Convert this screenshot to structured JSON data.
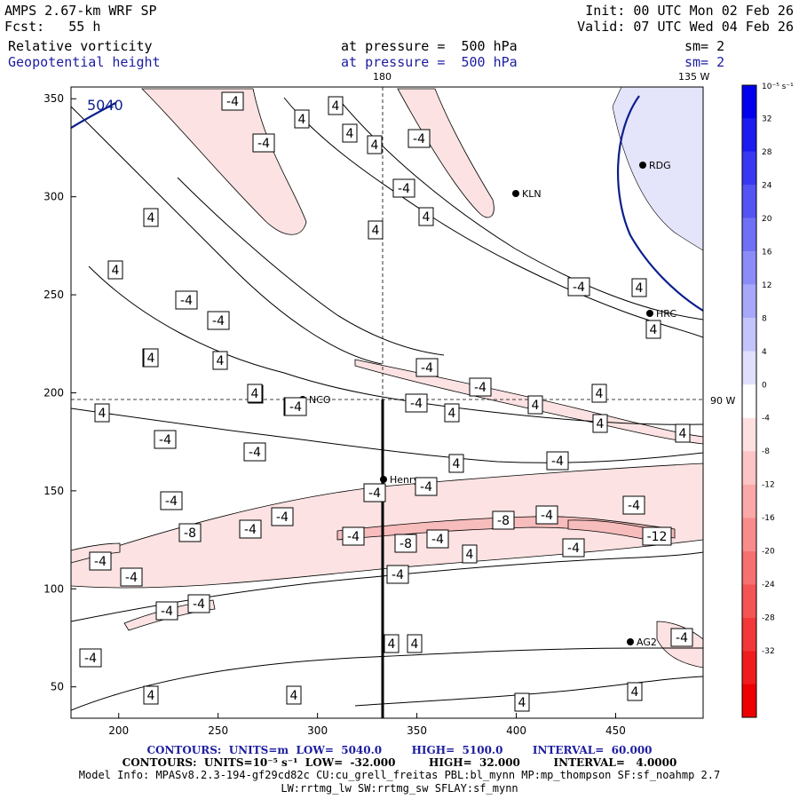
{
  "header": {
    "model": "AMPS 2.67-km WRF SP",
    "forecast": "Fcst:   55 h",
    "init": "Init: 00 UTC Mon 02 Feb 26",
    "valid": "Valid: 07 UTC Wed 04 Feb 26",
    "field1": "Relative vorticity",
    "field2": "Geopotential height",
    "pressure1": "at pressure =  500 hPa",
    "pressure2": "at pressure =  500 hPa",
    "sm1": "sm= 2",
    "sm2": "sm= 2"
  },
  "map_labels": {
    "lon_top": "180",
    "lon_topright": "135 W",
    "lat_right": "90 W",
    "height_contour": "5040",
    "stations": [
      {
        "name": "KLN"
      },
      {
        "name": "RDG"
      },
      {
        "name": "HRC"
      },
      {
        "name": "NCO"
      },
      {
        "name": "Henry"
      },
      {
        "name": "AG2"
      }
    ]
  },
  "chart_data": {
    "type": "contour_map",
    "title": "Relative vorticity / Geopotential height at 500 hPa",
    "x_ticks": [
      "200",
      "250",
      "300",
      "350",
      "400",
      "450"
    ],
    "y_ticks": [
      "50",
      "100",
      "150",
      "200",
      "250",
      "300",
      "350"
    ],
    "xlim": [
      176,
      494
    ],
    "ylim": [
      34,
      356
    ],
    "colorbar": {
      "unit": "10⁻⁵ s⁻¹",
      "labels": [
        "32",
        "28",
        "24",
        "20",
        "16",
        "12",
        "8",
        "4",
        "0",
        "-4",
        "-8",
        "-12",
        "-16",
        "-20",
        "-24",
        "-28",
        "-32"
      ],
      "colors": [
        "#0000ee",
        "#1c1cf0",
        "#3838f2",
        "#5454f4",
        "#7070f6",
        "#8c8cf8",
        "#a8a8fa",
        "#c4c4fc",
        "#e0e0fe",
        "#ffffff",
        "#fee0e0",
        "#fcc4c4",
        "#faa8a8",
        "#f88c8c",
        "#f67070",
        "#f45454",
        "#f23838",
        "#f01c1c",
        "#ee0000"
      ]
    },
    "contour_labels": [
      "-4",
      "4",
      "4",
      "4",
      "4",
      "-4",
      "-4",
      "-4",
      "4",
      "4",
      "4",
      "-4",
      "4",
      "-4",
      "-4",
      "4",
      "4",
      "4",
      "4",
      "-4",
      "-4",
      "4",
      "-4",
      "-4",
      "4",
      "4",
      "4",
      "4",
      "4",
      "-4",
      "-4",
      "4",
      "4",
      "-4",
      "-4",
      "-4",
      "-4",
      "-4",
      "-4",
      "-8",
      "-4",
      "-4",
      "-8",
      "-8",
      "-4",
      "-4",
      "4",
      "-4",
      "-12",
      "-4",
      "-4",
      "-4",
      "-4",
      "-4",
      "-4",
      "4",
      "4",
      "-4",
      "4",
      "4",
      "4",
      "4",
      "-4",
      "4",
      "4"
    ]
  },
  "footer": {
    "contours1": "CONTOURS:  UNITS=m  LOW=  5040.0        HIGH=  5100.0        INTERVAL=  60.000",
    "contours2": "CONTOURS:  UNITS=10⁻⁵ s⁻¹  LOW=  -32.000         HIGH=  32.000         INTERVAL=   4.0000",
    "model_info": "Model Info: MPASv8.2.3-194-gf29cd82c CU:cu_grell_freitas PBL:bl_mynn MP:mp_thompson SF:sf_noahmp 2.7",
    "model_info2": "LW:rrtmg_lw SW:rrtmg_sw SFLAY:sf_mynn"
  }
}
